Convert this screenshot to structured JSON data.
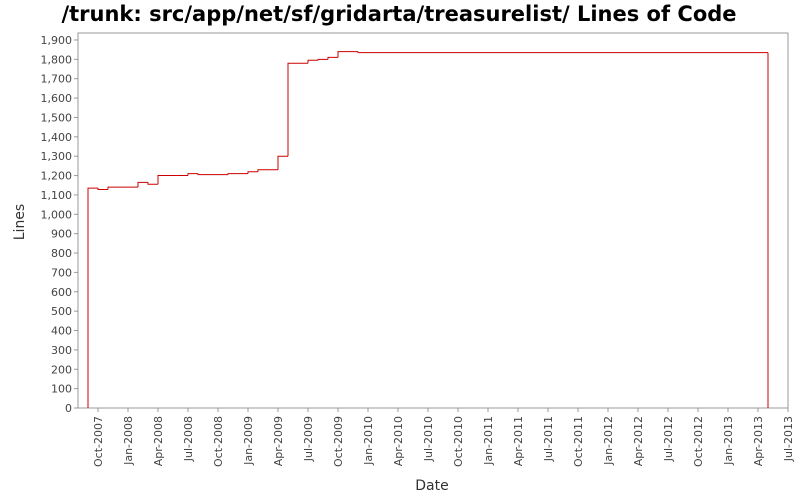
{
  "chart_data": {
    "type": "line",
    "title": "/trunk: src/app/net/sf/gridarta/treasurelist/ Lines of Code",
    "xlabel": "Date",
    "ylabel": "Lines",
    "x": [
      "2007-09",
      "2007-09",
      "2007-10",
      "2007-11",
      "2008-02",
      "2008-03",
      "2008-04",
      "2008-07",
      "2008-08",
      "2008-11",
      "2009-01",
      "2009-02",
      "2009-04",
      "2009-05",
      "2009-07",
      "2009-08",
      "2009-09",
      "2009-10",
      "2009-12",
      "2013-05",
      "2013-05"
    ],
    "series": [
      {
        "name": "Lines",
        "color": "#cc0000",
        "values": [
          0,
          1135,
          1128,
          1140,
          1165,
          1155,
          1200,
          1210,
          1205,
          1210,
          1220,
          1230,
          1300,
          1780,
          1795,
          1800,
          1810,
          1840,
          1835,
          1835,
          0
        ]
      }
    ],
    "xlim": [
      "2007-08",
      "2013-07"
    ],
    "xticks": [
      {
        "value": "2007-10",
        "label": "Oct-2007"
      },
      {
        "value": "2008-01",
        "label": "Jan-2008"
      },
      {
        "value": "2008-04",
        "label": "Apr-2008"
      },
      {
        "value": "2008-07",
        "label": "Jul-2008"
      },
      {
        "value": "2008-10",
        "label": "Oct-2008"
      },
      {
        "value": "2009-01",
        "label": "Jan-2009"
      },
      {
        "value": "2009-04",
        "label": "Apr-2009"
      },
      {
        "value": "2009-07",
        "label": "Jul-2009"
      },
      {
        "value": "2009-10",
        "label": "Oct-2009"
      },
      {
        "value": "2010-01",
        "label": "Jan-2010"
      },
      {
        "value": "2010-04",
        "label": "Apr-2010"
      },
      {
        "value": "2010-07",
        "label": "Jul-2010"
      },
      {
        "value": "2010-10",
        "label": "Oct-2010"
      },
      {
        "value": "2011-01",
        "label": "Jan-2011"
      },
      {
        "value": "2011-04",
        "label": "Apr-2011"
      },
      {
        "value": "2011-07",
        "label": "Jul-2011"
      },
      {
        "value": "2011-10",
        "label": "Oct-2011"
      },
      {
        "value": "2012-01",
        "label": "Jan-2012"
      },
      {
        "value": "2012-04",
        "label": "Apr-2012"
      },
      {
        "value": "2012-07",
        "label": "Jul-2012"
      },
      {
        "value": "2012-10",
        "label": "Oct-2012"
      },
      {
        "value": "2013-01",
        "label": "Jan-2013"
      },
      {
        "value": "2013-04",
        "label": "Apr-2013"
      },
      {
        "value": "2013-07",
        "label": "Jul-2013"
      }
    ],
    "ylim": [
      0,
      1936
    ],
    "yticks": [
      0,
      100,
      200,
      300,
      400,
      500,
      600,
      700,
      800,
      900,
      {
        "value": 1000,
        "label": "1,000"
      },
      {
        "value": 1100,
        "label": "1,100"
      },
      {
        "value": 1200,
        "label": "1,200"
      },
      {
        "value": 1300,
        "label": "1,300"
      },
      {
        "value": 1400,
        "label": "1,400"
      },
      {
        "value": 1500,
        "label": "1,500"
      },
      {
        "value": 1600,
        "label": "1,600"
      },
      {
        "value": 1700,
        "label": "1,700"
      },
      {
        "value": 1800,
        "label": "1,800"
      },
      {
        "value": 1900,
        "label": "1,900"
      }
    ],
    "grid": false
  }
}
